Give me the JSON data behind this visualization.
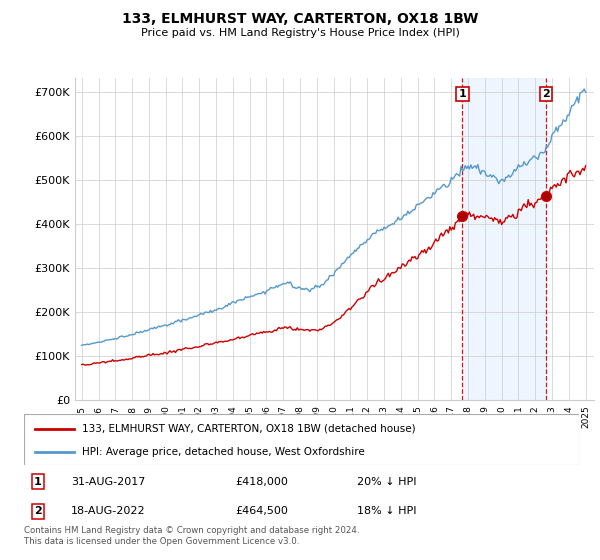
{
  "title": "133, ELMHURST WAY, CARTERTON, OX18 1BW",
  "subtitle": "Price paid vs. HM Land Registry's House Price Index (HPI)",
  "ylabel_ticks": [
    "£0",
    "£100K",
    "£200K",
    "£300K",
    "£400K",
    "£500K",
    "£600K",
    "£700K"
  ],
  "ytick_values": [
    0,
    100000,
    200000,
    300000,
    400000,
    500000,
    600000,
    700000
  ],
  "ylim": [
    0,
    730000
  ],
  "hpi_color": "#5599cc",
  "hpi_fill_color": "#ddeeff",
  "price_color": "#cc0000",
  "vline_color": "#cc0000",
  "t1_year": 2017.667,
  "t2_year": 2022.625,
  "t1_price": 418000,
  "t2_price": 464500,
  "marker1_label": "1",
  "marker2_label": "2",
  "transaction1": "31-AUG-2017",
  "transaction1_price": "£418,000",
  "transaction1_hpi": "20% ↓ HPI",
  "transaction2": "18-AUG-2022",
  "transaction2_price": "£464,500",
  "transaction2_hpi": "18% ↓ HPI",
  "legend_line1": "133, ELMHURST WAY, CARTERTON, OX18 1BW (detached house)",
  "legend_line2": "HPI: Average price, detached house, West Oxfordshire",
  "footer": "Contains HM Land Registry data © Crown copyright and database right 2024.\nThis data is licensed under the Open Government Licence v3.0.",
  "bg_color": "#ffffff",
  "grid_color": "#cccccc"
}
